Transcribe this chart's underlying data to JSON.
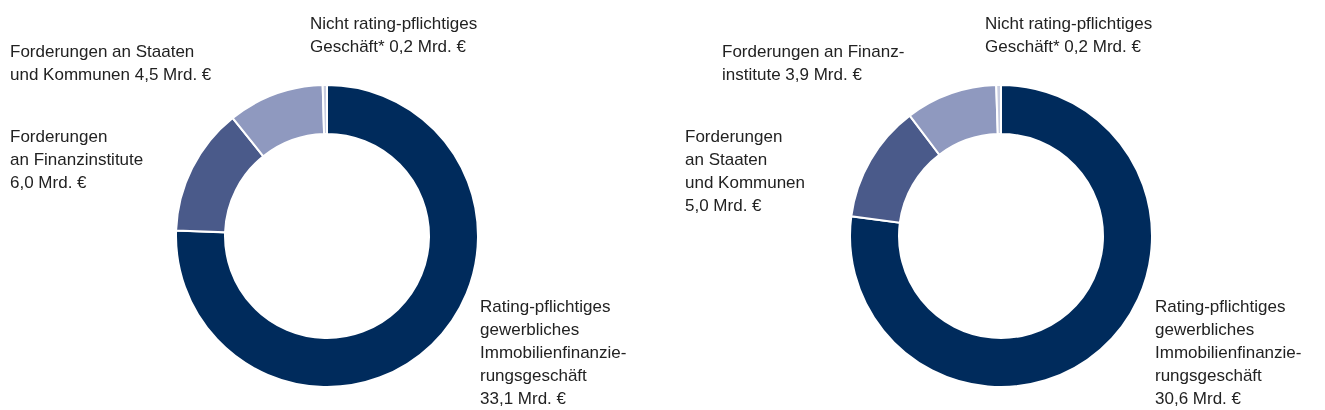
{
  "chart_data": [
    {
      "type": "donut",
      "categories": [
        "Rating-pflichtiges\ngewerbliches\nImmobilienfinanzie-\nrungsgeschäft\n",
        "Forderungen\nan Finanzinstitute\n",
        "Forderungen an Staaten\nund Kommunen",
        "Nicht rating-pflichtiges\nGeschäft*"
      ],
      "values": [
        33.1,
        6.0,
        4.5,
        0.2
      ],
      "value_labels": [
        "33,1 Mrd. €",
        "6,0 Mrd. €",
        "4,5 Mrd. €",
        "0,2 Mrd. €"
      ],
      "colors": [
        "#002b5c",
        "#4a5a8a",
        "#8f99bf",
        "#c8cde0"
      ]
    },
    {
      "type": "donut",
      "categories": [
        "Rating-pflichtiges\ngewerbliches\nImmobilienfinanzie-\nrungsgeschäft\n",
        "Forderungen\nan Staaten\nund Kommunen\n",
        "Forderungen an Finanz-\ninstitute",
        "Nicht rating-pflichtiges\nGeschäft*"
      ],
      "values": [
        30.6,
        5.0,
        3.9,
        0.2
      ],
      "value_labels": [
        "30,6 Mrd. €",
        "5,0 Mrd. €",
        "3,9 Mrd. €",
        "0,2 Mrd. €"
      ],
      "colors": [
        "#002b5c",
        "#4a5a8a",
        "#8f99bf",
        "#c8cde0"
      ]
    }
  ]
}
